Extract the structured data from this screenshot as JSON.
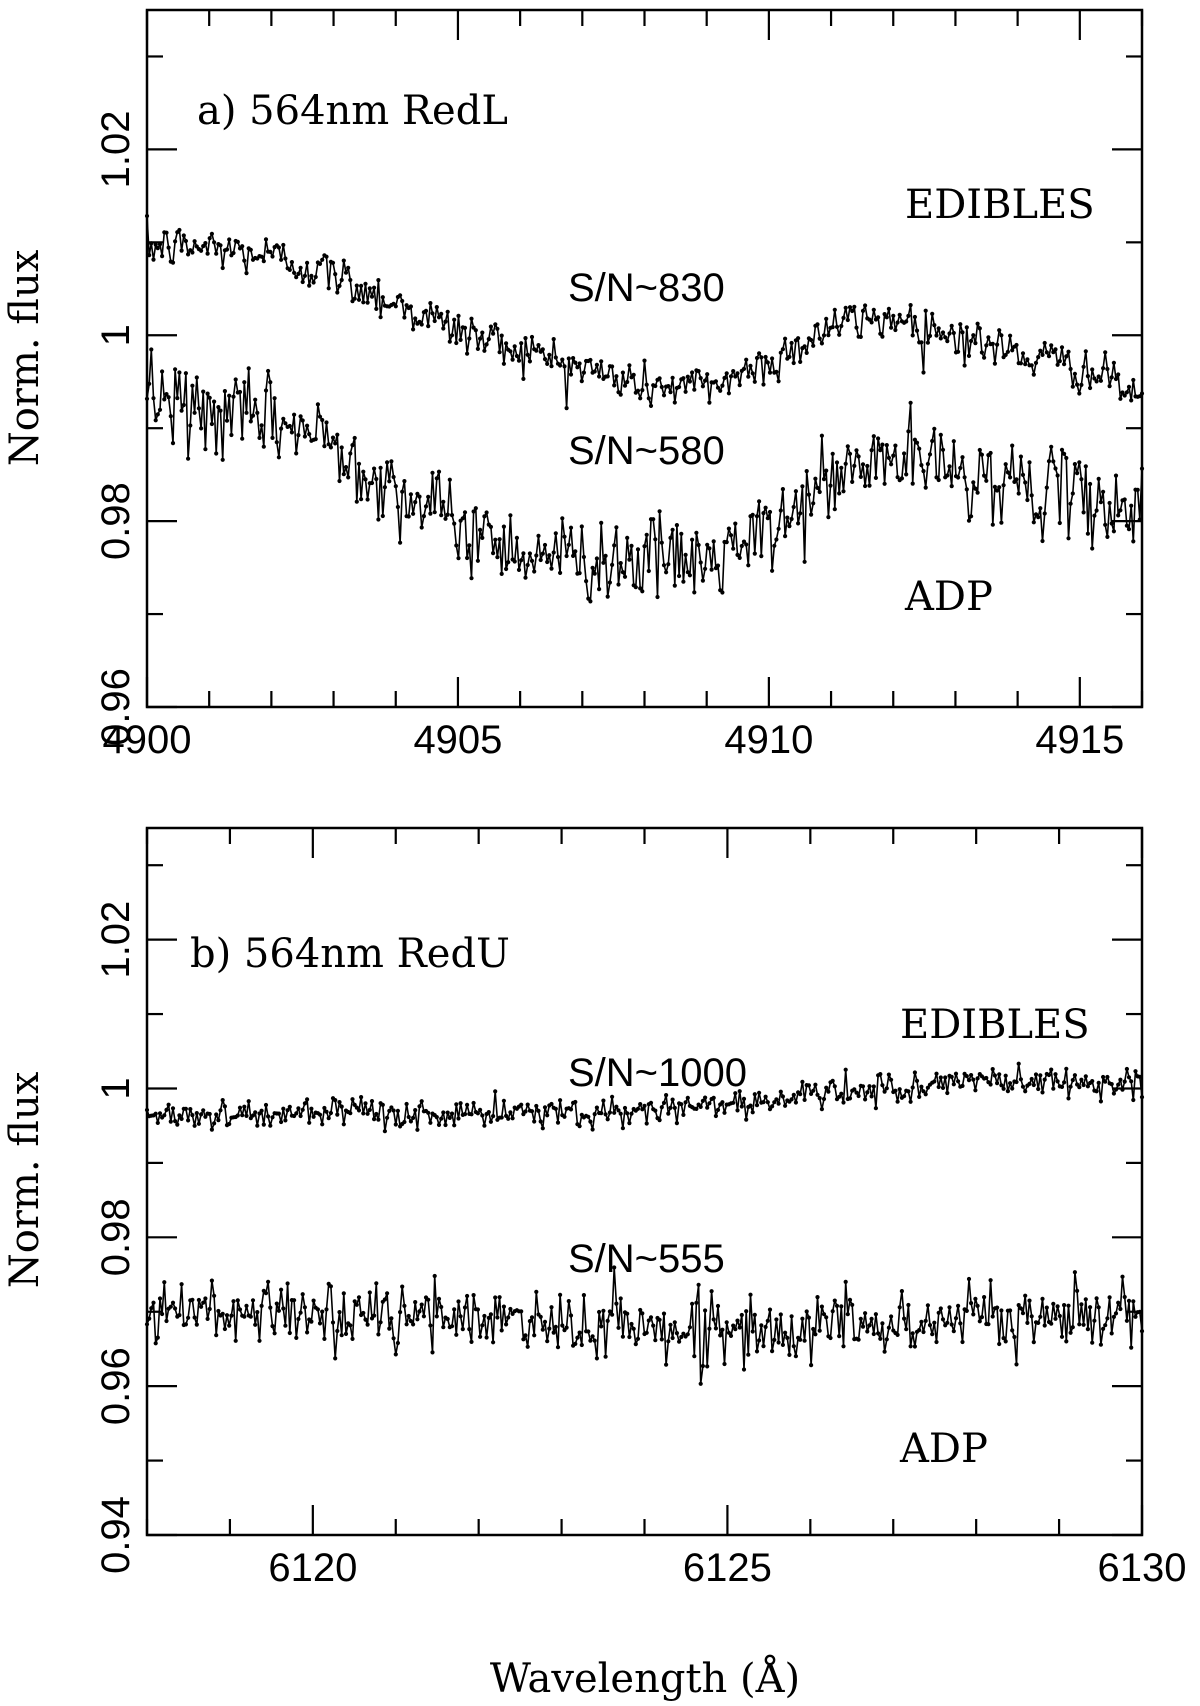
{
  "figure": {
    "xlabel": "Wavelength (Å)"
  },
  "chart_data": [
    {
      "type": "line",
      "panel_label": "a) 564nm RedL",
      "xlabel": "",
      "ylabel": "Norm. flux",
      "xlim": [
        4900,
        4916
      ],
      "ylim": [
        0.96,
        1.035
      ],
      "x_ticks": [
        4900,
        4905,
        4910,
        4915
      ],
      "x_tick_labels": [
        "4900",
        "4905",
        "4910",
        "4915"
      ],
      "y_ticks": [
        0.96,
        0.98,
        1.0,
        1.02
      ],
      "y_tick_labels": [
        "0.96",
        "0.98",
        "1",
        "1.02"
      ],
      "series": [
        {
          "name": "EDIBLES",
          "sn_label": "S/N~830",
          "noise": 0.0012,
          "x": [
            4900,
            4901,
            4902,
            4903,
            4904,
            4905,
            4906,
            4907,
            4908,
            4909,
            4910,
            4911,
            4912,
            4913,
            4914,
            4915,
            4916
          ],
          "values": [
            1.0095,
            1.0095,
            1.0085,
            1.0065,
            1.0035,
            1.0005,
            0.9985,
            0.9965,
            0.9945,
            0.9945,
            0.997,
            1.001,
            1.002,
            1.0,
            0.998,
            0.9965,
            0.9935
          ]
        },
        {
          "name": "ADP",
          "sn_label": "S/N~580",
          "noise": 0.0022,
          "x": [
            4900,
            4901,
            4902,
            4903,
            4904,
            4905,
            4906,
            4907,
            4908,
            4909,
            4910,
            4911,
            4912,
            4913,
            4914,
            4915,
            4916
          ],
          "values": [
            0.9935,
            0.9915,
            0.991,
            0.9885,
            0.9835,
            0.9795,
            0.977,
            0.976,
            0.976,
            0.9755,
            0.9785,
            0.9845,
            0.987,
            0.9855,
            0.984,
            0.9825,
            0.981
          ]
        }
      ]
    },
    {
      "type": "line",
      "panel_label": "b) 564nm RedU",
      "xlabel": "Wavelength (Å)",
      "ylabel": "Norm. flux",
      "xlim": [
        6118,
        6130
      ],
      "ylim": [
        0.94,
        1.035
      ],
      "x_ticks": [
        6120,
        6125,
        6130
      ],
      "x_tick_labels": [
        "6120",
        "6125",
        "6130"
      ],
      "y_ticks": [
        0.94,
        0.96,
        0.98,
        1.0,
        1.02
      ],
      "y_tick_labels": [
        "0.94",
        "0.96",
        "0.98",
        "1",
        "1.02"
      ],
      "series": [
        {
          "name": "EDIBLES",
          "sn_label": "S/N~1000",
          "noise": 0.001,
          "x": [
            6118,
            6120,
            6122,
            6124,
            6125,
            6126,
            6127,
            6128,
            6129,
            6130
          ],
          "values": [
            0.9965,
            0.9965,
            0.9965,
            0.997,
            0.998,
            0.999,
            1.0,
            1.001,
            1.001,
            1.0005
          ]
        },
        {
          "name": "ADP",
          "sn_label": "S/N~555",
          "noise": 0.0022,
          "x": [
            6118,
            6120,
            6122,
            6124,
            6125,
            6126,
            6127,
            6128,
            6129,
            6130
          ],
          "values": [
            0.97,
            0.9695,
            0.969,
            0.968,
            0.9675,
            0.968,
            0.9685,
            0.969,
            0.9695,
            0.9695
          ]
        }
      ]
    }
  ]
}
